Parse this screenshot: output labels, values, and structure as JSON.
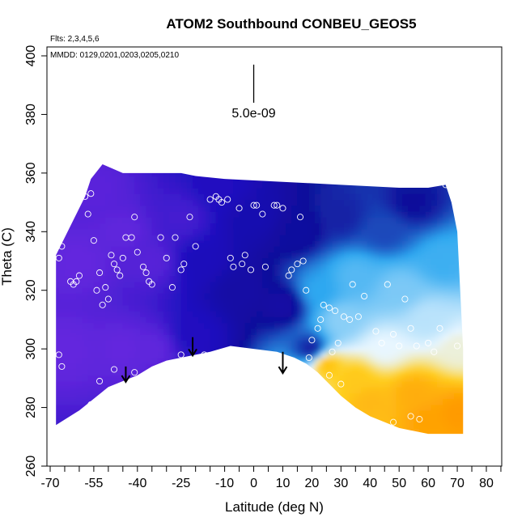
{
  "chart_data": {
    "type": "heatmap",
    "title": "ATOM2 Southbound CONBEU_GEOS5",
    "flights_label": "Flts: 2,3,4,5,6",
    "dates_label": "MMDD: 0129,0201,0203,0205,0210",
    "xlabel": "Latitude (deg N)",
    "ylabel": "Theta (C)",
    "xlim": [
      -70,
      85
    ],
    "ylim": [
      260,
      405
    ],
    "x_tick_values": [
      -70,
      -55,
      -40,
      -25,
      -10,
      0,
      10,
      20,
      30,
      40,
      50,
      60,
      70,
      80
    ],
    "x_tick_labels": [
      "-70",
      "-55",
      "-40",
      "-25",
      "-10",
      "0",
      "10",
      "20",
      "30",
      "40",
      "50",
      "60",
      "70",
      "80"
    ],
    "x_minor_ticks": [
      -65,
      -60,
      -50,
      -45,
      -35,
      -30,
      -20,
      -15,
      -5,
      5,
      15,
      25,
      35,
      45,
      55,
      65,
      75,
      85
    ],
    "y_tick_values": [
      260,
      280,
      300,
      320,
      340,
      360,
      380,
      400
    ],
    "y_tick_labels": [
      "260",
      "280",
      "300",
      "320",
      "340",
      "360",
      "380",
      "400"
    ],
    "scale_bar_label": "5.0e-09",
    "scale_bar": {
      "x": 0,
      "y_top": 397,
      "y_bottom": 384
    },
    "grid": false,
    "colors": {
      "low": "#7a2fe8",
      "mid_dark": "#2010c0",
      "navy": "#0f0f9a",
      "cyan": "#2ea8f0",
      "pale": "#e8f6ff",
      "yellow": "#ffd020",
      "orange": "#ff9a00"
    },
    "domain_top": [
      [
        -68,
        332
      ],
      [
        -62,
        344
      ],
      [
        -58,
        352
      ],
      [
        -56,
        358
      ],
      [
        -52,
        363
      ],
      [
        -45,
        360
      ],
      [
        -25,
        360
      ],
      [
        -20,
        359
      ],
      [
        -10,
        358
      ],
      [
        10,
        357
      ],
      [
        30,
        356
      ],
      [
        50,
        355
      ],
      [
        60,
        355
      ],
      [
        66,
        356
      ],
      [
        68,
        350
      ],
      [
        70,
        340
      ],
      [
        71,
        320
      ],
      [
        72,
        300
      ],
      [
        72,
        285
      ],
      [
        72,
        272
      ]
    ],
    "domain_bottom": [
      [
        -68,
        274
      ],
      [
        -60,
        279
      ],
      [
        -55,
        283
      ],
      [
        -50,
        287
      ],
      [
        -45,
        289
      ],
      [
        -40,
        291
      ],
      [
        -35,
        294
      ],
      [
        -30,
        296
      ],
      [
        -25,
        297
      ],
      [
        -20,
        298
      ],
      [
        -15,
        299
      ],
      [
        -8,
        301
      ],
      [
        0,
        300
      ],
      [
        8,
        299
      ],
      [
        14,
        297
      ],
      [
        18,
        295
      ],
      [
        22,
        292
      ],
      [
        26,
        288
      ],
      [
        30,
        284
      ],
      [
        35,
        280
      ],
      [
        40,
        277
      ],
      [
        45,
        275
      ],
      [
        50,
        273
      ],
      [
        55,
        272
      ],
      [
        60,
        271
      ],
      [
        65,
        271
      ],
      [
        70,
        271
      ],
      [
        72,
        271
      ]
    ],
    "field_key": [
      {
        "x": -65,
        "y": 300,
        "v": 0.05
      },
      {
        "x": -60,
        "y": 330,
        "v": 0.05
      },
      {
        "x": -55,
        "y": 355,
        "v": 0.07
      },
      {
        "x": -45,
        "y": 300,
        "v": 0.05
      },
      {
        "x": -45,
        "y": 340,
        "v": 0.06
      },
      {
        "x": -35,
        "y": 300,
        "v": 0.06
      },
      {
        "x": -35,
        "y": 330,
        "v": 0.08
      },
      {
        "x": -25,
        "y": 345,
        "v": 0.12
      },
      {
        "x": -20,
        "y": 305,
        "v": 0.2
      },
      {
        "x": -18,
        "y": 330,
        "v": 0.22
      },
      {
        "x": -12,
        "y": 355,
        "v": 0.2
      },
      {
        "x": -5,
        "y": 320,
        "v": 0.3
      },
      {
        "x": 0,
        "y": 345,
        "v": 0.26
      },
      {
        "x": 10,
        "y": 315,
        "v": 0.3
      },
      {
        "x": 15,
        "y": 340,
        "v": 0.32
      },
      {
        "x": 20,
        "y": 300,
        "v": 0.35
      },
      {
        "x": 22,
        "y": 320,
        "v": 0.5
      },
      {
        "x": 30,
        "y": 310,
        "v": 0.62
      },
      {
        "x": 30,
        "y": 345,
        "v": 0.36
      },
      {
        "x": 35,
        "y": 325,
        "v": 0.55
      },
      {
        "x": 45,
        "y": 340,
        "v": 0.4
      },
      {
        "x": 50,
        "y": 320,
        "v": 0.6
      },
      {
        "x": 55,
        "y": 350,
        "v": 0.34
      },
      {
        "x": 60,
        "y": 310,
        "v": 0.68
      },
      {
        "x": 65,
        "y": 330,
        "v": 0.52
      },
      {
        "x": 45,
        "y": 300,
        "v": 0.74
      },
      {
        "x": 25,
        "y": 295,
        "v": 0.9
      },
      {
        "x": 35,
        "y": 290,
        "v": 0.88
      },
      {
        "x": 40,
        "y": 282,
        "v": 0.92
      },
      {
        "x": 55,
        "y": 285,
        "v": 0.95
      },
      {
        "x": 60,
        "y": 276,
        "v": 0.98
      },
      {
        "x": 70,
        "y": 278,
        "v": 1.0
      },
      {
        "x": 70,
        "y": 300,
        "v": 0.76
      }
    ],
    "points": [
      [
        -67,
        337
      ],
      [
        -66,
        335
      ],
      [
        -67,
        331
      ],
      [
        -67,
        298
      ],
      [
        -66,
        294
      ],
      [
        -63,
        323
      ],
      [
        -62,
        322
      ],
      [
        -61,
        323
      ],
      [
        -60,
        325
      ],
      [
        -58,
        352
      ],
      [
        -57,
        346
      ],
      [
        -56,
        353
      ],
      [
        -55,
        337
      ],
      [
        -54,
        320
      ],
      [
        -53,
        326
      ],
      [
        -52,
        315
      ],
      [
        -51,
        321
      ],
      [
        -50,
        317
      ],
      [
        -49,
        332
      ],
      [
        -48,
        329
      ],
      [
        -47,
        327
      ],
      [
        -46,
        325
      ],
      [
        -45,
        331
      ],
      [
        -44,
        338
      ],
      [
        -42,
        338
      ],
      [
        -41,
        345
      ],
      [
        -40,
        333
      ],
      [
        -38,
        328
      ],
      [
        -37,
        326
      ],
      [
        -36,
        323
      ],
      [
        -35,
        322
      ],
      [
        -32,
        338
      ],
      [
        -30,
        331
      ],
      [
        -28,
        321
      ],
      [
        -27,
        338
      ],
      [
        -25,
        327
      ],
      [
        -24,
        329
      ],
      [
        -22,
        345
      ],
      [
        -20,
        335
      ],
      [
        -17,
        298
      ],
      [
        -15,
        351
      ],
      [
        -13,
        352
      ],
      [
        -12,
        351
      ],
      [
        -11,
        350
      ],
      [
        -9,
        351
      ],
      [
        -8,
        331
      ],
      [
        -7,
        328
      ],
      [
        -5,
        348
      ],
      [
        -4,
        329
      ],
      [
        -3,
        332
      ],
      [
        -1,
        327
      ],
      [
        0,
        349
      ],
      [
        1,
        349
      ],
      [
        3,
        346
      ],
      [
        4,
        328
      ],
      [
        7,
        349
      ],
      [
        8,
        349
      ],
      [
        10,
        348
      ],
      [
        12,
        325
      ],
      [
        13,
        327
      ],
      [
        15,
        329
      ],
      [
        16,
        345
      ],
      [
        17,
        330
      ],
      [
        18,
        320
      ],
      [
        19,
        297
      ],
      [
        20,
        303
      ],
      [
        22,
        307
      ],
      [
        23,
        310
      ],
      [
        24,
        315
      ],
      [
        26,
        314
      ],
      [
        27,
        299
      ],
      [
        28,
        313
      ],
      [
        29,
        302
      ],
      [
        31,
        311
      ],
      [
        33,
        310
      ],
      [
        34,
        322
      ],
      [
        36,
        311
      ],
      [
        38,
        318
      ],
      [
        42,
        306
      ],
      [
        44,
        302
      ],
      [
        46,
        322
      ],
      [
        48,
        305
      ],
      [
        50,
        301
      ],
      [
        52,
        317
      ],
      [
        54,
        307
      ],
      [
        56,
        301
      ],
      [
        57,
        276
      ],
      [
        60,
        302
      ],
      [
        62,
        299
      ],
      [
        64,
        307
      ],
      [
        66,
        356
      ],
      [
        68,
        355
      ],
      [
        70,
        301
      ],
      [
        -65,
        274
      ],
      [
        -56,
        281
      ],
      [
        -53,
        289
      ],
      [
        -48,
        293
      ],
      [
        -41,
        292
      ],
      [
        -36,
        292
      ],
      [
        -25,
        298
      ],
      [
        26,
        291
      ],
      [
        30,
        288
      ],
      [
        48,
        275
      ],
      [
        54,
        277
      ]
    ],
    "arrows": [
      [
        -44,
        294,
        289
      ],
      [
        -21,
        304,
        298
      ],
      [
        10,
        299,
        292
      ]
    ]
  }
}
